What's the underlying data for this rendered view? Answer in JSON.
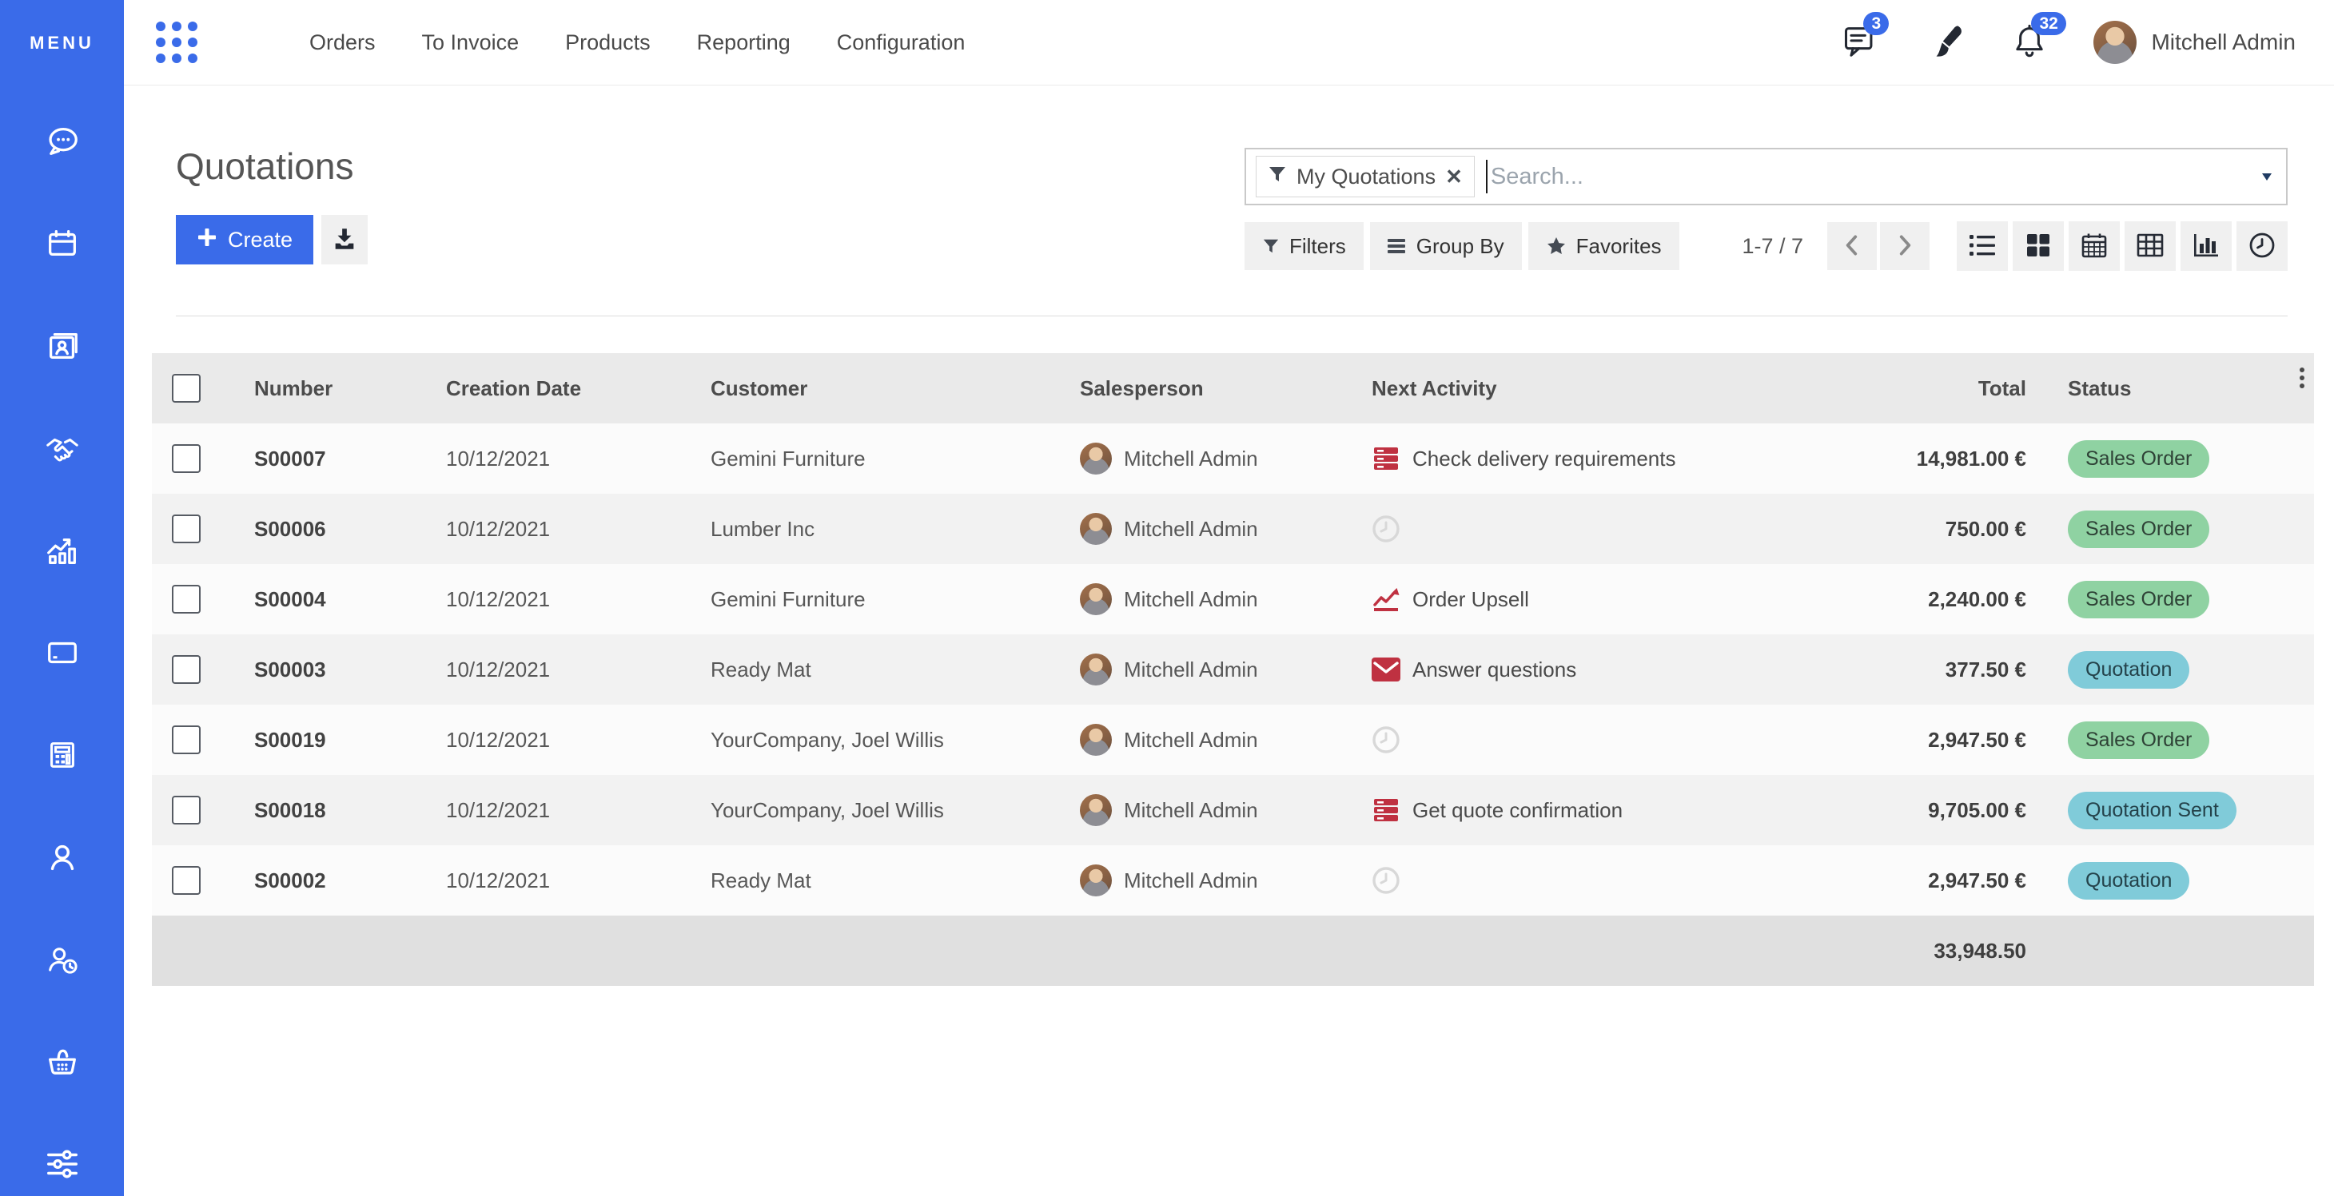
{
  "colors": {
    "accent": "#3a6be9",
    "badge_success_bg": "#8fd2a2",
    "badge_success_text": "#2e4236",
    "badge_info_bg": "#80cbd9",
    "badge_info_text": "#24424a",
    "activity_red": "#bf3141"
  },
  "sidebar": {
    "menu_label": "MENU",
    "apps": [
      {
        "icon": "discuss-icon"
      },
      {
        "icon": "calendar-icon"
      },
      {
        "icon": "contacts-icon"
      },
      {
        "icon": "crm-handshake-icon"
      },
      {
        "icon": "sales-chart-icon"
      },
      {
        "icon": "pos-card-icon"
      },
      {
        "icon": "accounting-calculator-icon"
      },
      {
        "icon": "employees-user-icon"
      },
      {
        "icon": "timeoff-user-clock-icon"
      },
      {
        "icon": "purchase-basket-icon"
      },
      {
        "icon": "settings-sliders-icon"
      }
    ]
  },
  "topnav": {
    "menus": [
      "Orders",
      "To Invoice",
      "Products",
      "Reporting",
      "Configuration"
    ],
    "messages_badge": "3",
    "notifications_badge": "32",
    "user_name": "Mitchell Admin"
  },
  "page": {
    "title": "Quotations",
    "create_label": "Create"
  },
  "search": {
    "facet_label": "My Quotations",
    "placeholder": "Search..."
  },
  "controls": {
    "filters_label": "Filters",
    "group_by_label": "Group By",
    "favorites_label": "Favorites",
    "pager_text": "1-7 / 7"
  },
  "table": {
    "columns": {
      "number": "Number",
      "creation_date": "Creation Date",
      "customer": "Customer",
      "salesperson": "Salesperson",
      "next_activity": "Next Activity",
      "total": "Total",
      "status": "Status"
    },
    "rows": [
      {
        "number": "S00007",
        "creation_date": "10/12/2021",
        "customer": "Gemini Furniture",
        "salesperson": "Mitchell Admin",
        "activity_icon": "tasks",
        "activity": "Check delivery requirements",
        "total": "14,981.00 €",
        "status": "Sales Order",
        "status_type": "success"
      },
      {
        "number": "S00006",
        "creation_date": "10/12/2021",
        "customer": "Lumber Inc",
        "salesperson": "Mitchell Admin",
        "activity_icon": "clock",
        "activity": "",
        "total": "750.00 €",
        "status": "Sales Order",
        "status_type": "success"
      },
      {
        "number": "S00004",
        "creation_date": "10/12/2021",
        "customer": "Gemini Furniture",
        "salesperson": "Mitchell Admin",
        "activity_icon": "chart",
        "activity": "Order Upsell",
        "total": "2,240.00 €",
        "status": "Sales Order",
        "status_type": "success"
      },
      {
        "number": "S00003",
        "creation_date": "10/12/2021",
        "customer": "Ready Mat",
        "salesperson": "Mitchell Admin",
        "activity_icon": "envelope",
        "activity": "Answer questions",
        "total": "377.50 €",
        "status": "Quotation",
        "status_type": "info"
      },
      {
        "number": "S00019",
        "creation_date": "10/12/2021",
        "customer": "YourCompany, Joel Willis",
        "salesperson": "Mitchell Admin",
        "activity_icon": "clock",
        "activity": "",
        "total": "2,947.50 €",
        "status": "Sales Order",
        "status_type": "success"
      },
      {
        "number": "S00018",
        "creation_date": "10/12/2021",
        "customer": "YourCompany, Joel Willis",
        "salesperson": "Mitchell Admin",
        "activity_icon": "tasks",
        "activity": "Get quote confirmation",
        "total": "9,705.00 €",
        "status": "Quotation Sent",
        "status_type": "info"
      },
      {
        "number": "S00002",
        "creation_date": "10/12/2021",
        "customer": "Ready Mat",
        "salesperson": "Mitchell Admin",
        "activity_icon": "clock",
        "activity": "",
        "total": "2,947.50 €",
        "status": "Quotation",
        "status_type": "info"
      }
    ],
    "footer_total": "33,948.50"
  }
}
